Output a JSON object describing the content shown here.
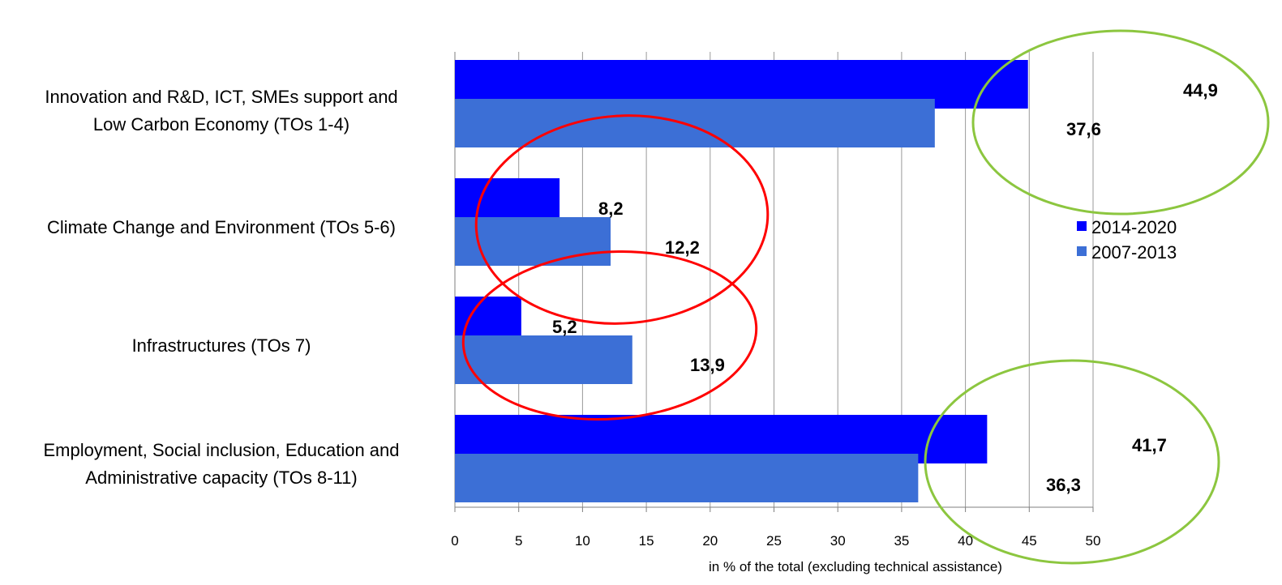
{
  "chart_data": {
    "type": "bar",
    "orientation": "horizontal",
    "categories": [
      [
        "Innovation and R&D, ICT, SMEs support and",
        "Low Carbon Economy (TOs 1-4)"
      ],
      [
        "Climate Change and Environment (TOs 5-6)"
      ],
      [
        "Infrastructures (TOs 7)"
      ],
      [
        "Employment, Social inclusion, Education and",
        "Administrative capacity (TOs 8-11)"
      ]
    ],
    "series": [
      {
        "name": "2014-2020",
        "color": "#0000ff",
        "values": [
          44.9,
          8.2,
          5.2,
          41.7
        ],
        "labels": [
          "44,9",
          "8,2",
          "5,2",
          "41,7"
        ]
      },
      {
        "name": "2007-2013",
        "color": "#3c6fd6",
        "values": [
          37.6,
          12.2,
          13.9,
          36.3
        ],
        "labels": [
          "37,6",
          "12,2",
          "13,9",
          "36,3"
        ]
      }
    ],
    "title": "",
    "xlabel": "in % of the total  (excluding technical assistance)",
    "ylabel": "",
    "xlim": [
      0,
      50
    ],
    "xticks": [
      0,
      5,
      10,
      15,
      20,
      25,
      30,
      35,
      40,
      45,
      50
    ],
    "grid": "vertical",
    "legend_position": "right",
    "annotations": [
      {
        "shape": "ellipse",
        "color": "#ff0000",
        "highlights": "Climate Change and Environment (TOs 5-6)"
      },
      {
        "shape": "ellipse",
        "color": "#ff0000",
        "highlights": "Infrastructures (TOs 7)"
      },
      {
        "shape": "ellipse",
        "color": "#8cc63f",
        "highlights": "Innovation and R&D, ICT, SMEs support and Low Carbon Economy (TOs 1-4)"
      },
      {
        "shape": "ellipse",
        "color": "#8cc63f",
        "highlights": "Employment, Social inclusion, Education and Administrative capacity (TOs 8-11)"
      }
    ]
  }
}
